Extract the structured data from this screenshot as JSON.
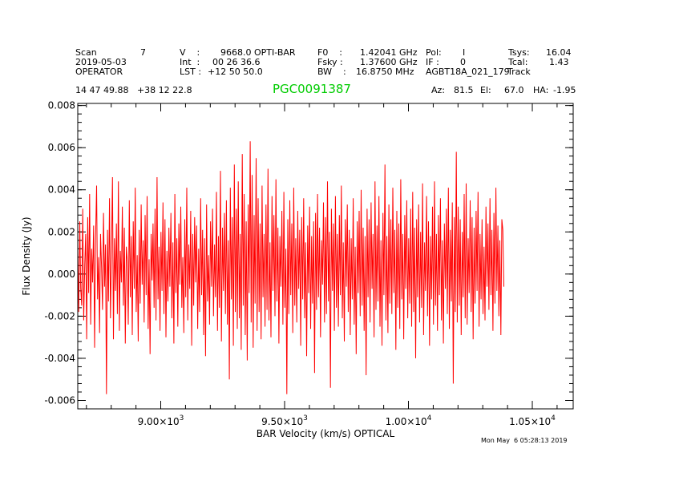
{
  "header": {
    "scan_label": "Scan",
    "scan_value": "7",
    "date": "2019-05-03",
    "operator": "OPERATOR",
    "v_label": "V    :",
    "v_value": "9668.0 OPTI-BAR",
    "int_label": "Int  :",
    "int_value": "00 26 36.6",
    "lst_label": "LST :",
    "lst_value": "+12 50 50.0",
    "f0_label": "F0    :",
    "f0_value": "1.42041 GHz",
    "fsky_label": "Fsky :",
    "fsky_value": "1.37600 GHz",
    "bw_label": "BW    :",
    "bw_value": "16.8750 MHz",
    "pol_label": "Pol:",
    "pol_value": "I",
    "if_label": "IF :",
    "if_value": "0",
    "project": "AGBT18A_021_179",
    "track": "Track",
    "tsys_label": "Tsys:",
    "tsys_value": "16.04",
    "tcal_label": "Tcal:",
    "tcal_value": "1.43",
    "coords": "14 47 49.88   +38 12 22.8",
    "source": "PGC0091387",
    "az_label": "Az:",
    "az_value": "81.5",
    "el_label": "El:",
    "el_value": "67.0",
    "ha_label": "HA:",
    "ha_value": "-1.95",
    "timestamp": "Mon May  6 05:28:13 2019"
  },
  "chart_data": {
    "type": "line",
    "xlabel": "BAR Velocity (km/s) OPTICAL",
    "ylabel": "Flux Density (Jy)",
    "xlim": [
      8665,
      10665
    ],
    "ylim": [
      -0.0064,
      0.0081
    ],
    "xticks": [
      {
        "mantissa": "9.00",
        "exp": "3"
      },
      {
        "mantissa": "9.50",
        "exp": "3"
      },
      {
        "mantissa": "1.00",
        "exp": "4"
      },
      {
        "mantissa": "1.05",
        "exp": "4"
      }
    ],
    "xtick_values": [
      9000,
      9500,
      10000,
      10500
    ],
    "xminor_step": 100,
    "yticks": [
      "-0.006",
      "-0.004",
      "-0.002",
      "0.000",
      "0.002",
      "0.004",
      "0.006",
      "0.008"
    ],
    "ytick_values": [
      -0.006,
      -0.004,
      -0.002,
      0.0,
      0.002,
      0.004,
      0.006,
      0.008
    ],
    "yminor_step": 0.0004,
    "line_color": "#ff0000",
    "series": [
      {
        "x_start": 8665,
        "x_step": 4.0,
        "values": [
          0.0011,
          -0.0018,
          0.0025,
          -0.0007,
          -0.0015,
          0.0031,
          -0.0022,
          0.0004,
          0.0019,
          -0.0031,
          0.0027,
          -0.0009,
          0.0038,
          -0.0024,
          0.0012,
          -0.0004,
          0.0023,
          -0.0035,
          0.0016,
          0.0042,
          -0.0012,
          0.0008,
          -0.0028,
          0.0019,
          0.0003,
          -0.0017,
          0.0029,
          -0.0006,
          0.0014,
          -0.0057,
          0.0021,
          -0.0013,
          0.0036,
          -0.0021,
          0.0009,
          0.0046,
          -0.0031,
          0.0017,
          -0.0008,
          0.0024,
          -0.0019,
          0.0044,
          -0.0027,
          0.0011,
          -0.0004,
          0.0032,
          -0.0015,
          0.0022,
          -0.0033,
          0.0013,
          0.0006,
          -0.0024,
          0.0035,
          -0.0011,
          0.0018,
          -0.0029,
          0.0025,
          -0.0007,
          0.0041,
          -0.0018,
          0.0009,
          -0.0032,
          0.0021,
          -0.0014,
          0.0033,
          -0.0005,
          0.0016,
          -0.0023,
          0.0028,
          -0.001,
          0.0037,
          -0.0026,
          0.0007,
          -0.0038,
          0.0019,
          -0.0003,
          0.0024,
          -0.0016,
          0.0031,
          -0.0022,
          0.0046,
          -0.0012,
          0.0013,
          -0.0027,
          0.002,
          -0.0008,
          0.0034,
          -0.0019,
          0.0026,
          -0.003,
          0.0011,
          -0.0013,
          0.0022,
          -0.0006,
          0.0029,
          -0.0021,
          0.0015,
          -0.0033,
          0.0038,
          -0.0009,
          0.0017,
          -0.0025,
          0.0024,
          -0.0005,
          0.0032,
          -0.0016,
          0.0008,
          -0.0028,
          0.0026,
          -0.0011,
          0.0041,
          -0.0022,
          0.0014,
          -0.0007,
          0.003,
          -0.0034,
          0.0019,
          -0.0015,
          0.0027,
          -0.0004,
          0.0023,
          -0.0026,
          0.0012,
          -0.0018,
          0.0036,
          -0.001,
          0.0021,
          -0.0029,
          0.0017,
          -0.0039,
          0.0033,
          -0.0013,
          0.0009,
          -0.0024,
          0.0025,
          -0.0006,
          0.0031,
          -0.002,
          0.0014,
          -0.0011,
          0.0039,
          -0.0027,
          0.0018,
          -0.0016,
          0.0049,
          -0.0032,
          0.0022,
          -0.0008,
          0.0029,
          -0.0019,
          0.0035,
          -0.0024,
          0.0016,
          -0.005,
          0.0041,
          -0.0012,
          0.0027,
          -0.0034,
          0.0052,
          -0.0018,
          0.0031,
          -0.0026,
          0.0044,
          -0.0021,
          0.0019,
          -0.0036,
          0.0057,
          -0.0015,
          0.0038,
          -0.0029,
          0.0025,
          -0.0041,
          0.0033,
          -0.0009,
          0.0063,
          -0.0023,
          0.0047,
          -0.0035,
          0.0028,
          -0.0014,
          0.0055,
          -0.0027,
          0.0036,
          -0.0018,
          0.0024,
          -0.0031,
          0.0042,
          -0.0011,
          0.0019,
          -0.0025,
          0.0033,
          -0.0017,
          0.005,
          -0.0022,
          0.0015,
          -0.003,
          0.0037,
          -0.0008,
          0.0028,
          -0.002,
          0.0045,
          -0.0013,
          0.0022,
          -0.0033,
          0.0018,
          -0.0006,
          0.003,
          -0.0024,
          0.0039,
          -0.0016,
          0.0012,
          -0.0057,
          0.0026,
          -0.0019,
          0.0035,
          -0.001,
          0.0024,
          -0.0028,
          0.0041,
          -0.0015,
          0.0017,
          -0.0023,
          0.003,
          -0.0007,
          0.0021,
          -0.0034,
          0.0027,
          -0.0012,
          0.0036,
          -0.0021,
          0.0015,
          -0.0039,
          0.0023,
          -0.0009,
          0.0032,
          -0.0026,
          0.0018,
          -0.0014,
          0.0025,
          -0.0047,
          0.0029,
          -0.0017,
          0.0038,
          -0.0011,
          0.0022,
          -0.003,
          0.0016,
          -0.0005,
          0.0034,
          -0.0023,
          0.0027,
          -0.0019,
          0.0044,
          -0.0013,
          0.002,
          -0.0054,
          0.0031,
          -0.0008,
          0.0024,
          -0.0027,
          0.0037,
          -0.0016,
          0.0019,
          -0.0025,
          0.0028,
          -0.001,
          0.0042,
          -0.0021,
          0.0015,
          -0.0032,
          0.0026,
          -0.0006,
          0.0033,
          -0.0018,
          0.0021,
          -0.0029,
          0.0017,
          -0.0012,
          0.0036,
          -0.0024,
          0.0013,
          -0.0038,
          0.0025,
          -0.0009,
          0.003,
          -0.002,
          0.004,
          -0.0015,
          0.0022,
          -0.0027,
          0.0018,
          -0.0048,
          0.0031,
          -0.0011,
          0.0026,
          -0.0023,
          0.0034,
          -0.0007,
          0.0019,
          -0.003,
          0.0044,
          -0.0017,
          0.0023,
          -0.0013,
          0.0037,
          -0.0025,
          0.0016,
          -0.0034,
          0.0029,
          -0.001,
          0.0052,
          -0.0022,
          0.0018,
          -0.0028,
          0.0033,
          -0.0014,
          0.0026,
          -0.0019,
          0.0041,
          -0.0009,
          0.0021,
          -0.0036,
          0.003,
          -0.0016,
          0.0024,
          -0.0026,
          0.0045,
          -0.0012,
          0.0019,
          -0.0031,
          0.0028,
          -0.0007,
          0.0035,
          -0.0021,
          0.0017,
          -0.0014,
          0.0031,
          -0.0025,
          0.0039,
          -0.0018,
          0.0022,
          -0.004,
          0.0026,
          -0.0011,
          0.0033,
          -0.0023,
          0.002,
          -0.0016,
          0.0043,
          -0.0029,
          0.0015,
          -0.0008,
          0.0037,
          -0.002,
          0.0025,
          -0.0034,
          0.0018,
          -0.0012,
          0.0032,
          -0.0024,
          0.0044,
          -0.0015,
          0.0019,
          -0.0027,
          0.0028,
          -0.001,
          0.0036,
          -0.0022,
          0.0016,
          -0.0033,
          0.0024,
          -0.0007,
          0.0031,
          -0.0019,
          0.0041,
          -0.0026,
          0.0021,
          -0.0013,
          0.0034,
          -0.0052,
          0.0027,
          -0.0018,
          0.0058,
          -0.0023,
          0.0032,
          -0.0015,
          0.0026,
          -0.0029,
          0.002,
          -0.0011,
          0.0038,
          -0.0021,
          0.0043,
          -0.0024,
          0.0017,
          -0.0009,
          0.0035,
          -0.0018,
          0.0027,
          -0.0031,
          0.0022,
          -0.0014,
          0.003,
          -0.0008,
          0.0039,
          -0.0025,
          0.0019,
          -0.0012,
          0.0026,
          -0.0019,
          0.0013,
          -0.0022,
          0.0032,
          -0.0006,
          0.0024,
          -0.0017,
          0.0036,
          -0.001,
          0.0021,
          -0.0027,
          0.0029,
          -0.0014,
          0.0041,
          -0.0008,
          0.0023,
          -0.002,
          0.0016,
          -0.0029,
          0.0026,
          0.0021,
          -0.0006
        ]
      }
    ]
  }
}
